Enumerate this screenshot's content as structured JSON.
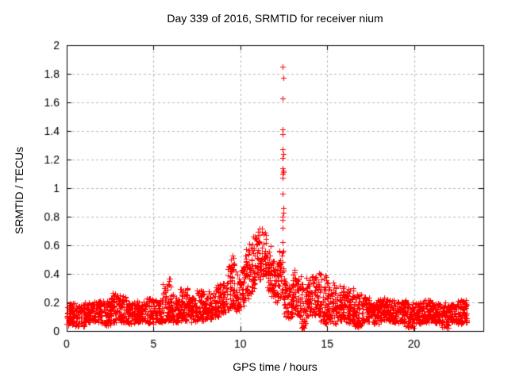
{
  "chart_data": {
    "type": "scatter",
    "title": "Day 339 of 2016, SRMTID for receiver nium",
    "xlabel": "GPS time / hours",
    "ylabel": "SRMTID / TECUs",
    "xlim": [
      0,
      24
    ],
    "ylim": [
      0,
      2
    ],
    "xtick_values": [
      0,
      5,
      10,
      15,
      20
    ],
    "xtick_labels": [
      "0",
      "5",
      "10",
      "15",
      "20"
    ],
    "ytick_values": [
      0,
      0.2,
      0.4,
      0.6,
      0.8,
      1,
      1.2,
      1.4,
      1.6,
      1.8,
      2
    ],
    "ytick_labels": [
      "0",
      "0.2",
      "0.4",
      "0.6",
      "0.8",
      "1",
      "1.2",
      "1.4",
      "1.6",
      "1.8",
      "2"
    ],
    "grid": true,
    "legend": "none",
    "marker": "plus",
    "marker_color": "#ff0000",
    "grid_color": "#b9b9b9",
    "border_color": "#000000",
    "background": "#ffffff",
    "points_per_hour": 120,
    "band_envelope": [
      [
        0.0,
        0.5,
        0.04,
        0.2
      ],
      [
        0.5,
        1.0,
        0.03,
        0.19
      ],
      [
        1.0,
        1.5,
        0.06,
        0.2
      ],
      [
        1.5,
        2.0,
        0.06,
        0.21
      ],
      [
        2.0,
        2.5,
        0.04,
        0.22
      ],
      [
        2.5,
        3.0,
        0.06,
        0.27
      ],
      [
        3.0,
        3.5,
        0.06,
        0.25
      ],
      [
        3.5,
        4.0,
        0.05,
        0.2
      ],
      [
        4.0,
        4.5,
        0.06,
        0.21
      ],
      [
        4.5,
        5.0,
        0.05,
        0.24
      ],
      [
        5.0,
        5.5,
        0.06,
        0.22
      ],
      [
        5.5,
        6.0,
        0.07,
        0.37
      ],
      [
        6.0,
        6.5,
        0.06,
        0.26
      ],
      [
        6.5,
        7.0,
        0.07,
        0.3
      ],
      [
        7.0,
        7.5,
        0.06,
        0.25
      ],
      [
        7.5,
        8.0,
        0.07,
        0.3
      ],
      [
        8.0,
        8.5,
        0.08,
        0.28
      ],
      [
        8.5,
        9.0,
        0.1,
        0.33
      ],
      [
        9.0,
        9.25,
        0.12,
        0.35
      ],
      [
        9.25,
        9.5,
        0.14,
        0.5
      ],
      [
        9.5,
        9.75,
        0.16,
        0.55
      ],
      [
        9.75,
        10.0,
        0.14,
        0.4
      ],
      [
        10.0,
        10.25,
        0.17,
        0.45
      ],
      [
        10.25,
        10.5,
        0.2,
        0.58
      ],
      [
        10.5,
        10.75,
        0.26,
        0.62
      ],
      [
        10.75,
        11.0,
        0.3,
        0.68
      ],
      [
        11.0,
        11.25,
        0.36,
        0.72
      ],
      [
        11.25,
        11.5,
        0.34,
        0.7
      ],
      [
        11.5,
        11.75,
        0.28,
        0.6
      ],
      [
        11.75,
        12.0,
        0.24,
        0.5
      ],
      [
        12.0,
        12.25,
        0.2,
        0.48
      ],
      [
        12.25,
        12.5,
        0.22,
        0.58
      ],
      [
        12.5,
        12.75,
        0.1,
        0.38
      ],
      [
        12.75,
        13.0,
        0.09,
        0.32
      ],
      [
        13.0,
        13.25,
        0.14,
        0.45
      ],
      [
        13.25,
        13.5,
        0.1,
        0.4
      ],
      [
        13.5,
        13.75,
        0.02,
        0.35
      ],
      [
        13.75,
        14.0,
        0.09,
        0.38
      ],
      [
        14.0,
        14.5,
        0.1,
        0.4
      ],
      [
        14.5,
        15.0,
        0.05,
        0.42
      ],
      [
        15.0,
        15.5,
        0.04,
        0.35
      ],
      [
        15.5,
        16.0,
        0.07,
        0.32
      ],
      [
        16.0,
        16.5,
        0.05,
        0.3
      ],
      [
        16.5,
        17.0,
        0.03,
        0.26
      ],
      [
        17.0,
        17.5,
        0.06,
        0.24
      ],
      [
        17.5,
        18.0,
        0.05,
        0.22
      ],
      [
        18.0,
        18.5,
        0.07,
        0.25
      ],
      [
        18.5,
        19.0,
        0.06,
        0.22
      ],
      [
        19.0,
        19.5,
        0.05,
        0.21
      ],
      [
        19.5,
        20.0,
        0.02,
        0.22
      ],
      [
        20.0,
        20.5,
        0.05,
        0.2
      ],
      [
        20.5,
        21.0,
        0.06,
        0.22
      ],
      [
        21.0,
        21.5,
        0.05,
        0.2
      ],
      [
        21.5,
        22.0,
        0.02,
        0.2
      ],
      [
        22.0,
        22.5,
        0.06,
        0.21
      ],
      [
        22.5,
        23.05,
        0.05,
        0.22
      ]
    ],
    "spike": {
      "t": 12.45,
      "values": [
        1.85,
        1.77,
        1.63,
        1.41,
        1.38,
        1.27,
        1.24,
        1.21,
        1.14,
        1.12,
        1.11,
        1.1,
        1.07,
        0.96,
        0.86,
        0.83,
        0.8,
        0.78,
        0.72,
        0.62,
        0.55,
        0.43
      ]
    }
  }
}
